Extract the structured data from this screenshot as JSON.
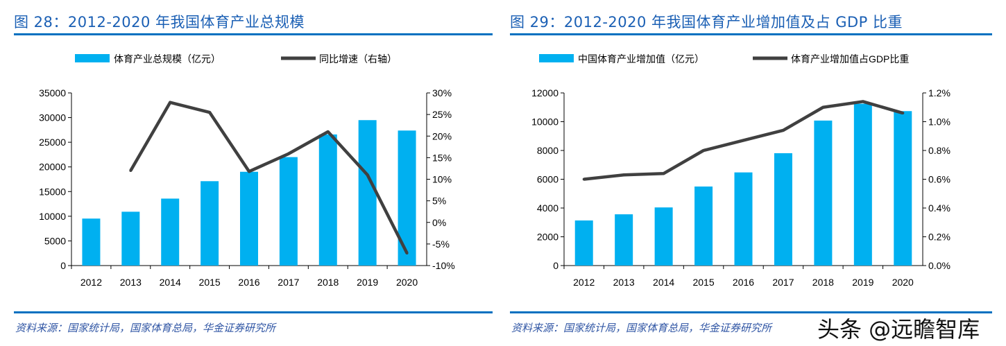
{
  "left": {
    "title": "图 28：2012-2020 年我国体育产业总规模",
    "source": "资料来源：国家统计局，国家体育总局，华金证券研究所"
  },
  "right": {
    "title": "图 29：2012-2020 年我国体育产业增加值及占 GDP 比重",
    "source": "资料来源：国家统计局，国家体育总局，华金证券研究所"
  },
  "watermark": "头条 @远瞻智库",
  "colors": {
    "bar": "#00b0f0",
    "line": "#404040",
    "rule": "#0070c0"
  },
  "chart_data": [
    {
      "type": "bar+line",
      "categories": [
        "2012",
        "2013",
        "2014",
        "2015",
        "2016",
        "2017",
        "2018",
        "2019",
        "2020"
      ],
      "series": [
        {
          "name": "体育产业总规模（亿元）",
          "type": "bar",
          "axis": "left",
          "values": [
            9526,
            10913,
            13575,
            17107,
            19011,
            21988,
            26579,
            29483,
            27372
          ]
        },
        {
          "name": "同比增速（右轴）",
          "type": "line",
          "axis": "right",
          "values": [
            null,
            12.0,
            27.8,
            25.5,
            11.8,
            15.9,
            21.0,
            11.0,
            -7.1
          ]
        }
      ],
      "ylim": [
        0,
        35000
      ],
      "yticks": [
        "0",
        "5000",
        "10000",
        "15000",
        "20000",
        "25000",
        "30000",
        "35000"
      ],
      "y2lim": [
        -10,
        30
      ],
      "y2ticks": [
        "-10%",
        "-5%",
        "0%",
        "5%",
        "10%",
        "15%",
        "20%",
        "25%",
        "30%"
      ],
      "legend": "top",
      "grid": false
    },
    {
      "type": "bar+line",
      "categories": [
        "2012",
        "2013",
        "2014",
        "2015",
        "2016",
        "2017",
        "2018",
        "2019",
        "2020"
      ],
      "series": [
        {
          "name": "中国体育产业增加值（亿元）",
          "type": "bar",
          "axis": "left",
          "values": [
            3136,
            3563,
            4041,
            5494,
            6475,
            7811,
            10078,
            11248,
            10735
          ]
        },
        {
          "name": "体育产业增加值占GDP比重",
          "type": "line",
          "axis": "right",
          "values": [
            0.6,
            0.63,
            0.64,
            0.8,
            0.87,
            0.94,
            1.1,
            1.14,
            1.06
          ]
        }
      ],
      "ylim": [
        0,
        12000
      ],
      "yticks": [
        "0",
        "2000",
        "4000",
        "6000",
        "8000",
        "10000",
        "12000"
      ],
      "y2lim": [
        0,
        1.2
      ],
      "y2ticks": [
        "0.0%",
        "0.2%",
        "0.4%",
        "0.6%",
        "0.8%",
        "1.0%",
        "1.2%"
      ],
      "legend": "top",
      "grid": false
    }
  ]
}
